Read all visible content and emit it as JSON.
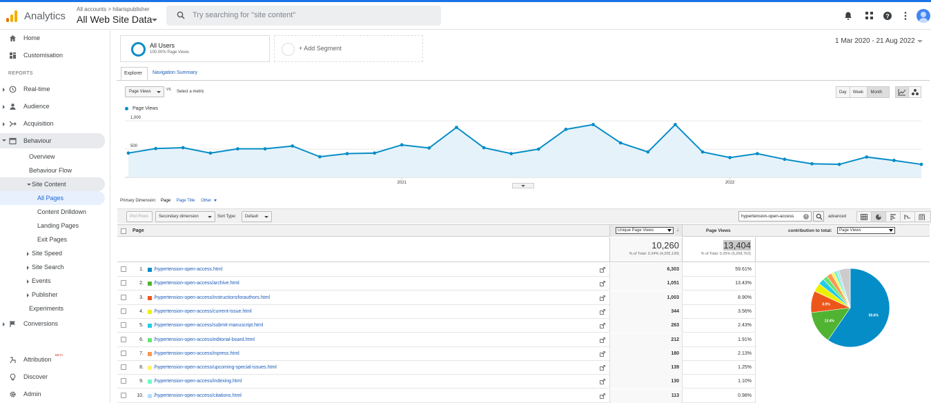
{
  "topbar": {
    "app_name": "Analytics",
    "breadcrumb": "All accounts > hilarispublisher",
    "property": "All Web Site Data",
    "search_placeholder": "Try searching for \"site content\"",
    "icons": [
      "bell-icon",
      "apps-icon",
      "help-icon",
      "more-icon",
      "avatar"
    ]
  },
  "sidebar": {
    "home": "Home",
    "customisation": "Customisation",
    "reports_label": "REPORTS",
    "realtime": "Real-time",
    "audience": "Audience",
    "acquisition": "Acquisition",
    "behaviour": "Behaviour",
    "overview": "Overview",
    "behaviour_flow": "Behaviour Flow",
    "site_content": "Site Content",
    "all_pages": "All Pages",
    "content_drilldown": "Content Drilldown",
    "landing_pages": "Landing Pages",
    "exit_pages": "Exit Pages",
    "site_speed": "Site Speed",
    "site_search": "Site Search",
    "events": "Events",
    "publisher": "Publisher",
    "experiments": "Experiments",
    "conversions": "Conversions",
    "attribution": "Attribution",
    "attribution_badge": "BETA",
    "discover": "Discover",
    "admin": "Admin"
  },
  "segments": {
    "seg1_name": "All Users",
    "seg1_sub": "100.00% Page Views",
    "add_segment": "+ Add Segment"
  },
  "date_range": "1 Mar 2020 - 21 Aug 2022",
  "tabs": {
    "explorer": "Explorer",
    "navigation_summary": "Navigation Summary"
  },
  "chart_controls": {
    "metric": "Page Views",
    "vs": "VS",
    "select_metric": "Select a metric",
    "day": "Day",
    "week": "Week",
    "month": "Month"
  },
  "chart_data": {
    "type": "line",
    "series": [
      {
        "name": "Page Views",
        "color": "#058dc7",
        "values": [
          430,
          510,
          525,
          430,
          505,
          505,
          555,
          365,
          420,
          430,
          575,
          520,
          885,
          525,
          420,
          500,
          850,
          935,
          610,
          450,
          935,
          450,
          350,
          420,
          320,
          240,
          230,
          360,
          300,
          230
        ]
      }
    ],
    "yticks": [
      "1,000",
      "500"
    ],
    "ylim": [
      0,
      1100
    ],
    "xticks": [
      {
        "label": "2021",
        "index": 10
      },
      {
        "label": "2022",
        "index": 22
      }
    ],
    "grid": true
  },
  "primary_dimension": {
    "label": "Primary Dimension:",
    "page": "Page",
    "page_title": "Page Title",
    "other": "Other"
  },
  "toolbar": {
    "plot_rows": "Plot Rows",
    "secondary_dimension": "Secondary dimension",
    "sort_type_label": "Sort Type:",
    "sort_type": "Default",
    "filter_value": "hypertension-open-access",
    "advanced": "advanced"
  },
  "table": {
    "col_page": "Page",
    "col_unique": "Unique Page Views",
    "col_pageviews": "Page Views",
    "col_contribution": "contribution to total:",
    "contribution_metric": "Page Views",
    "total_unique": "10,260",
    "total_unique_sub": "% of Total: 0.24% (4,205,139)",
    "total_pageviews": "13,404",
    "total_pageviews_sub": "% of Total: 0.25% (5,268,763)",
    "rows": [
      {
        "n": "1.",
        "page": "/hypertension-open-access.html",
        "unique": "6,303",
        "pct": "59.61%",
        "color": "#058dc7"
      },
      {
        "n": "2.",
        "page": "/hypertension-open-access/archive.html",
        "unique": "1,051",
        "pct": "13.43%",
        "color": "#50b432"
      },
      {
        "n": "3.",
        "page": "/hypertension-open-access/instructionsforauthors.html",
        "unique": "1,003",
        "pct": "8.90%",
        "color": "#ed561b"
      },
      {
        "n": "4.",
        "page": "/hypertension-open-access/current-issue.html",
        "unique": "344",
        "pct": "3.56%",
        "color": "#edef00"
      },
      {
        "n": "5.",
        "page": "/hypertension-open-access/submit-manuscript.html",
        "unique": "263",
        "pct": "2.43%",
        "color": "#24cbe5"
      },
      {
        "n": "6.",
        "page": "/hypertension-open-access/editorial-board.html",
        "unique": "212",
        "pct": "1.91%",
        "color": "#64e572"
      },
      {
        "n": "7.",
        "page": "/hypertension-open-access/inpress.html",
        "unique": "180",
        "pct": "2.13%",
        "color": "#ff9655"
      },
      {
        "n": "8.",
        "page": "/hypertension-open-access/upcoming-special-issues.html",
        "unique": "139",
        "pct": "1.25%",
        "color": "#fff263"
      },
      {
        "n": "9.",
        "page": "/hypertension-open-access/indexing.html",
        "unique": "130",
        "pct": "1.10%",
        "color": "#6af9c4"
      },
      {
        "n": "10.",
        "page": "/hypertension-open-access/citations.html",
        "unique": "113",
        "pct": "0.98%",
        "color": "#b2deff"
      }
    ]
  },
  "pie": {
    "values": [
      59.61,
      13.43,
      8.9,
      3.56,
      2.43,
      1.91,
      2.13,
      1.25,
      1.1,
      0.98,
      4.7
    ],
    "colors": [
      "#058dc7",
      "#50b432",
      "#ed561b",
      "#edef00",
      "#24cbe5",
      "#64e572",
      "#ff9655",
      "#fff263",
      "#6af9c4",
      "#b2deff",
      "#cccccc"
    ],
    "labels": [
      "59.6%",
      "13.4%",
      "8.9%"
    ]
  }
}
